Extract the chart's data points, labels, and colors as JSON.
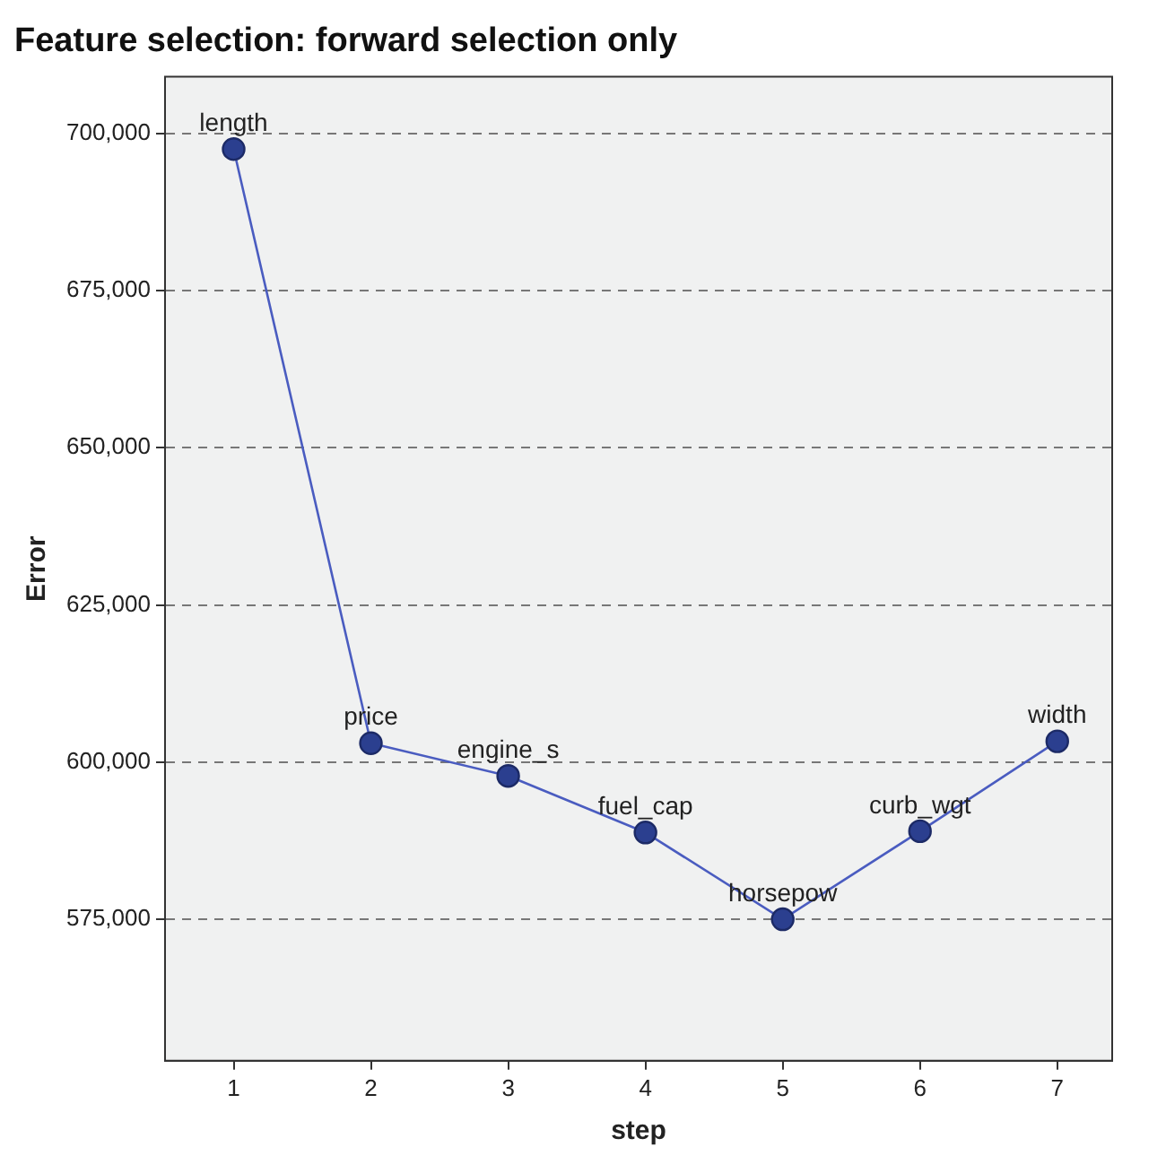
{
  "chart_data": {
    "type": "line",
    "title": "Feature selection: forward selection only",
    "xlabel": "step",
    "ylabel": "Error",
    "x": [
      1,
      2,
      3,
      4,
      5,
      6,
      7
    ],
    "series": [
      {
        "color": "#4a5cc0",
        "values": [
          697500,
          603000,
          597800,
          588800,
          575000,
          589000,
          603300
        ]
      }
    ],
    "xlim": [
      0.5,
      7.4
    ],
    "xticks": [
      1,
      2,
      3,
      4,
      5,
      6,
      7
    ],
    "ylim": [
      552500,
      709000
    ],
    "yticks": [
      {
        "value": 575000,
        "label": "575,000"
      },
      {
        "value": 600000,
        "label": "600,000"
      },
      {
        "value": 625000,
        "label": "625,000"
      },
      {
        "value": 650000,
        "label": "650,000"
      },
      {
        "value": 675000,
        "label": "675,000"
      },
      {
        "value": 700000,
        "label": "700,000"
      }
    ],
    "grid": "y",
    "marker": "circle",
    "line_style": "solid",
    "annotations": [
      {
        "text": "length",
        "x": 1,
        "y": 697500
      },
      {
        "text": "price",
        "x": 2,
        "y": 603000
      },
      {
        "text": "engine_s",
        "x": 3,
        "y": 597800
      },
      {
        "text": "fuel_cap",
        "x": 4,
        "y": 588800
      },
      {
        "text": "horsepow",
        "x": 5,
        "y": 575000
      },
      {
        "text": "curb_wgt",
        "x": 6,
        "y": 589000
      },
      {
        "text": "width",
        "x": 7,
        "y": 603300
      }
    ]
  }
}
